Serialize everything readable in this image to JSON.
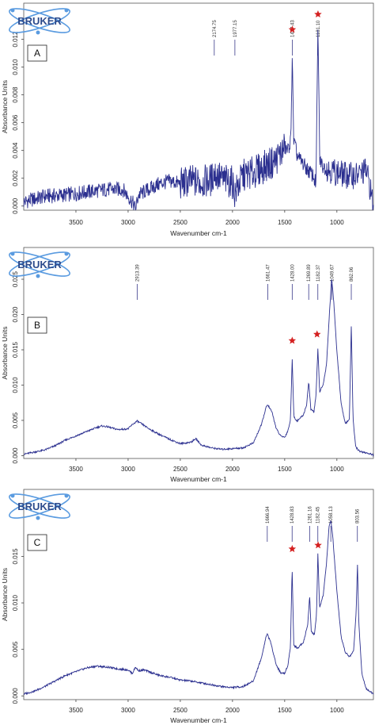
{
  "colors": {
    "spectrum": "#2b2f8f",
    "star": "#d42020",
    "logo": "#2c4a8c",
    "logo_orbit": "#5a9be0"
  },
  "logo": {
    "text": "BRUKER",
    "icon": "atom-orbit-icon"
  },
  "chart_data": [
    {
      "type": "line",
      "panel_label": "A",
      "xlabel": "Wavenumber cm-1",
      "ylabel": "Absorbance Units",
      "xlim": [
        4000,
        650
      ],
      "x_reversed": true,
      "ylim": [
        -0.0003,
        0.0146
      ],
      "x_ticks": [
        3500,
        3000,
        2500,
        2000,
        1500,
        1000
      ],
      "x_tick_labels": [
        "3500",
        "3000",
        "2500",
        "2000",
        "1500",
        "1000"
      ],
      "y_ticks": [
        0,
        0.002,
        0.004,
        0.006,
        0.008,
        0.01,
        0.012
      ],
      "y_tick_labels": [
        "0.000",
        "0.002",
        "0.004",
        "0.006",
        "0.008",
        "0.010",
        "0.012"
      ],
      "peak_labels": [
        {
          "x": 2174.75,
          "label": "2174.75"
        },
        {
          "x": 1977.15,
          "label": "1977.15"
        },
        {
          "x": 1427.43,
          "label": "1427.43"
        },
        {
          "x": 1181.1,
          "label": "1181.10"
        }
      ],
      "stars": [
        {
          "x": 1427,
          "y": 0.0127
        },
        {
          "x": 1181,
          "y": 0.0138
        }
      ],
      "series": [
        {
          "x": [
            4000,
            3800,
            3600,
            3400,
            3200,
            3050,
            2960,
            2930,
            2900,
            2800,
            2700,
            2600,
            2500,
            2400,
            2300,
            2200,
            2175,
            2100,
            2000,
            1977,
            1900,
            1800,
            1700,
            1600,
            1540,
            1500,
            1470,
            1440,
            1427,
            1415,
            1380,
            1330,
            1280,
            1230,
            1200,
            1181,
            1165,
            1140,
            1100,
            1000,
            900,
            800,
            720,
            680,
            650
          ],
          "y": [
            0.0003,
            0.0007,
            0.0008,
            0.001,
            0.0012,
            0.0012,
            0.0003,
            -0.0002,
            0.0008,
            0.0012,
            0.0016,
            0.0018,
            0.0016,
            0.0018,
            0.0017,
            0.0019,
            0.0024,
            0.0019,
            0.0017,
            0.0009,
            0.0022,
            0.0024,
            0.0028,
            0.0032,
            0.0038,
            0.0042,
            0.004,
            0.0048,
            0.0114,
            0.0048,
            0.0036,
            0.0031,
            0.0026,
            0.0022,
            0.0016,
            0.0132,
            0.0034,
            0.0029,
            0.0027,
            0.0024,
            0.0022,
            0.0022,
            0.0026,
            0.0013,
            -0.0002
          ]
        }
      ]
    },
    {
      "type": "line",
      "panel_label": "B",
      "xlabel": "Wavenumber cm-1",
      "ylabel": "Absorbance Units",
      "xlim": [
        4000,
        650
      ],
      "x_reversed": true,
      "ylim": [
        -0.0004,
        0.0295
      ],
      "x_ticks": [
        3500,
        3000,
        2500,
        2000,
        1500,
        1000
      ],
      "x_tick_labels": [
        "3500",
        "3000",
        "2500",
        "2000",
        "1500",
        "1000"
      ],
      "y_ticks": [
        0,
        0.005,
        0.01,
        0.015,
        0.02,
        0.025
      ],
      "y_tick_labels": [
        "0.000",
        "0.005",
        "0.010",
        "0.015",
        "0.020",
        "0.025"
      ],
      "peak_labels": [
        {
          "x": 2913.39,
          "label": "2913.39"
        },
        {
          "x": 1661.47,
          "label": "1661.47"
        },
        {
          "x": 1428.0,
          "label": "1428.00"
        },
        {
          "x": 1269.89,
          "label": "1269.89"
        },
        {
          "x": 1182.37,
          "label": "1182.37"
        },
        {
          "x": 1049.67,
          "label": "1049.67"
        },
        {
          "x": 862.06,
          "label": "862.06"
        }
      ],
      "stars": [
        {
          "x": 1428,
          "y": 0.0163
        },
        {
          "x": 1190,
          "y": 0.0172
        }
      ],
      "series": [
        {
          "x": [
            4000,
            3900,
            3800,
            3700,
            3600,
            3500,
            3400,
            3300,
            3250,
            3200,
            3100,
            3000,
            2960,
            2913,
            2870,
            2800,
            2700,
            2600,
            2500,
            2400,
            2350,
            2300,
            2200,
            2100,
            2000,
            1900,
            1800,
            1720,
            1680,
            1661,
            1620,
            1580,
            1540,
            1500,
            1470,
            1445,
            1428,
            1412,
            1380,
            1320,
            1290,
            1270,
            1250,
            1220,
            1200,
            1182,
            1165,
            1130,
            1100,
            1070,
            1050,
            1030,
            1000,
            960,
            920,
            880,
            862,
            845,
            820,
            780,
            720,
            650
          ],
          "y": [
            0.0002,
            0.0005,
            0.0008,
            0.0014,
            0.0022,
            0.0028,
            0.0034,
            0.004,
            0.0042,
            0.0041,
            0.0037,
            0.0038,
            0.0044,
            0.0049,
            0.0045,
            0.0038,
            0.003,
            0.0023,
            0.0017,
            0.0019,
            0.0024,
            0.0015,
            0.0011,
            0.0009,
            0.001,
            0.0011,
            0.0018,
            0.0045,
            0.0068,
            0.0072,
            0.0061,
            0.0038,
            0.0028,
            0.0026,
            0.0035,
            0.005,
            0.0138,
            0.0055,
            0.0049,
            0.0058,
            0.0072,
            0.0105,
            0.0066,
            0.0062,
            0.0085,
            0.0152,
            0.009,
            0.0102,
            0.0128,
            0.0205,
            0.0252,
            0.0218,
            0.0148,
            0.0075,
            0.0045,
            0.0052,
            0.0185,
            0.0052,
            0.0012,
            0.0006,
            0.0004,
            0.0001
          ]
        }
      ]
    },
    {
      "type": "line",
      "panel_label": "C",
      "xlabel": "Wavenumber cm-1",
      "ylabel": "Absorbance Units",
      "xlim": [
        4000,
        650
      ],
      "x_reversed": true,
      "ylim": [
        -0.0004,
        0.0222
      ],
      "x_ticks": [
        3500,
        3000,
        2500,
        2000,
        1500,
        1000
      ],
      "x_tick_labels": [
        "3500",
        "3000",
        "2500",
        "2000",
        "1500",
        "1000"
      ],
      "y_ticks": [
        0,
        0.005,
        0.01,
        0.015
      ],
      "y_tick_labels": [
        "0.000",
        "0.005",
        "0.010",
        "0.015"
      ],
      "peak_labels": [
        {
          "x": 1666.94,
          "label": "1666.94"
        },
        {
          "x": 1428.83,
          "label": "1428.83"
        },
        {
          "x": 1261.16,
          "label": "1261.16"
        },
        {
          "x": 1182.45,
          "label": "1182.45"
        },
        {
          "x": 1058.13,
          "label": "1058.13"
        },
        {
          "x": 803.56,
          "label": "803.56"
        }
      ],
      "stars": [
        {
          "x": 1428,
          "y": 0.0158
        },
        {
          "x": 1180,
          "y": 0.0162
        }
      ],
      "series": [
        {
          "x": [
            4000,
            3900,
            3800,
            3700,
            3600,
            3500,
            3400,
            3300,
            3200,
            3100,
            3000,
            2960,
            2930,
            2900,
            2850,
            2800,
            2700,
            2600,
            2500,
            2400,
            2300,
            2200,
            2100,
            2000,
            1900,
            1800,
            1720,
            1680,
            1667,
            1630,
            1580,
            1540,
            1500,
            1470,
            1445,
            1429,
            1413,
            1380,
            1320,
            1280,
            1261,
            1245,
            1215,
            1195,
            1182,
            1166,
            1130,
            1100,
            1075,
            1058,
            1040,
            1000,
            960,
            920,
            880,
            840,
            815,
            803,
            790,
            760,
            720,
            650
          ],
          "y": [
            0.0002,
            0.0005,
            0.001,
            0.0016,
            0.0022,
            0.0026,
            0.003,
            0.0032,
            0.0031,
            0.0029,
            0.0028,
            0.0024,
            0.0031,
            0.0027,
            0.0028,
            0.0026,
            0.0022,
            0.002,
            0.0017,
            0.0016,
            0.0014,
            0.0012,
            0.001,
            0.0009,
            0.001,
            0.0016,
            0.0042,
            0.0063,
            0.0067,
            0.0056,
            0.0033,
            0.0025,
            0.0024,
            0.0033,
            0.0052,
            0.0138,
            0.0055,
            0.0051,
            0.0058,
            0.0076,
            0.0107,
            0.0069,
            0.0066,
            0.0088,
            0.0154,
            0.0094,
            0.0109,
            0.0142,
            0.0182,
            0.0189,
            0.0172,
            0.0112,
            0.0064,
            0.0047,
            0.0042,
            0.0048,
            0.0092,
            0.0142,
            0.0078,
            0.0024,
            0.0008,
            0.0002
          ]
        }
      ]
    }
  ]
}
